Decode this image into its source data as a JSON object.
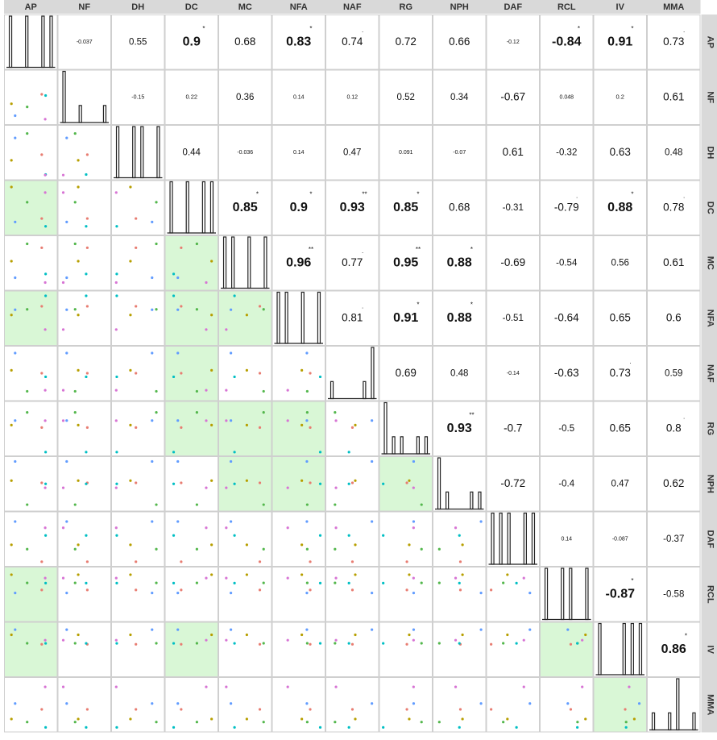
{
  "chart_data": {
    "type": "correlation-matrix",
    "variables": [
      "AP",
      "NF",
      "DH",
      "DC",
      "MC",
      "NFA",
      "NAF",
      "RG",
      "NPH",
      "DAF",
      "RCL",
      "IV",
      "MMA"
    ],
    "upper": [
      {
        "row": "AP",
        "col": "NF",
        "r": "-0.037",
        "sig": ""
      },
      {
        "row": "AP",
        "col": "DH",
        "r": "0.55",
        "sig": ""
      },
      {
        "row": "AP",
        "col": "DC",
        "r": "0.9",
        "sig": "*"
      },
      {
        "row": "AP",
        "col": "MC",
        "r": "0.68",
        "sig": ""
      },
      {
        "row": "AP",
        "col": "NFA",
        "r": "0.83",
        "sig": "*"
      },
      {
        "row": "AP",
        "col": "NAF",
        "r": "0.74",
        "sig": "."
      },
      {
        "row": "AP",
        "col": "RG",
        "r": "0.72",
        "sig": ""
      },
      {
        "row": "AP",
        "col": "NPH",
        "r": "0.66",
        "sig": ""
      },
      {
        "row": "AP",
        "col": "DAF",
        "r": "-0.12",
        "sig": ""
      },
      {
        "row": "AP",
        "col": "RCL",
        "r": "-0.84",
        "sig": "*"
      },
      {
        "row": "AP",
        "col": "IV",
        "r": "0.91",
        "sig": "*"
      },
      {
        "row": "AP",
        "col": "MMA",
        "r": "0.73",
        "sig": "."
      },
      {
        "row": "NF",
        "col": "DH",
        "r": "-0.15",
        "sig": ""
      },
      {
        "row": "NF",
        "col": "DC",
        "r": "0.22",
        "sig": ""
      },
      {
        "row": "NF",
        "col": "MC",
        "r": "0.36",
        "sig": ""
      },
      {
        "row": "NF",
        "col": "NFA",
        "r": "0.14",
        "sig": ""
      },
      {
        "row": "NF",
        "col": "NAF",
        "r": "0.12",
        "sig": ""
      },
      {
        "row": "NF",
        "col": "RG",
        "r": "0.52",
        "sig": ""
      },
      {
        "row": "NF",
        "col": "NPH",
        "r": "0.34",
        "sig": ""
      },
      {
        "row": "NF",
        "col": "DAF",
        "r": "-0.67",
        "sig": ""
      },
      {
        "row": "NF",
        "col": "RCL",
        "r": "0.048",
        "sig": ""
      },
      {
        "row": "NF",
        "col": "IV",
        "r": "0.2",
        "sig": ""
      },
      {
        "row": "NF",
        "col": "MMA",
        "r": "0.61",
        "sig": ""
      },
      {
        "row": "DH",
        "col": "DC",
        "r": "0.44",
        "sig": ""
      },
      {
        "row": "DH",
        "col": "MC",
        "r": "-0.036",
        "sig": ""
      },
      {
        "row": "DH",
        "col": "NFA",
        "r": "0.14",
        "sig": ""
      },
      {
        "row": "DH",
        "col": "NAF",
        "r": "0.47",
        "sig": ""
      },
      {
        "row": "DH",
        "col": "RG",
        "r": "0.091",
        "sig": ""
      },
      {
        "row": "DH",
        "col": "NPH",
        "r": "-0.07",
        "sig": ""
      },
      {
        "row": "DH",
        "col": "DAF",
        "r": "0.61",
        "sig": ""
      },
      {
        "row": "DH",
        "col": "RCL",
        "r": "-0.32",
        "sig": ""
      },
      {
        "row": "DH",
        "col": "IV",
        "r": "0.63",
        "sig": ""
      },
      {
        "row": "DH",
        "col": "MMA",
        "r": "0.48",
        "sig": ""
      },
      {
        "row": "DC",
        "col": "MC",
        "r": "0.85",
        "sig": "*"
      },
      {
        "row": "DC",
        "col": "NFA",
        "r": "0.9",
        "sig": "*"
      },
      {
        "row": "DC",
        "col": "NAF",
        "r": "0.93",
        "sig": "**"
      },
      {
        "row": "DC",
        "col": "RG",
        "r": "0.85",
        "sig": "*"
      },
      {
        "row": "DC",
        "col": "NPH",
        "r": "0.68",
        "sig": ""
      },
      {
        "row": "DC",
        "col": "DAF",
        "r": "-0.31",
        "sig": ""
      },
      {
        "row": "DC",
        "col": "RCL",
        "r": "-0.79",
        "sig": "."
      },
      {
        "row": "DC",
        "col": "IV",
        "r": "0.88",
        "sig": "*"
      },
      {
        "row": "DC",
        "col": "MMA",
        "r": "0.78",
        "sig": "."
      },
      {
        "row": "MC",
        "col": "NFA",
        "r": "0.96",
        "sig": "**"
      },
      {
        "row": "MC",
        "col": "NAF",
        "r": "0.77",
        "sig": "."
      },
      {
        "row": "MC",
        "col": "RG",
        "r": "0.95",
        "sig": "**"
      },
      {
        "row": "MC",
        "col": "NPH",
        "r": "0.88",
        "sig": "*"
      },
      {
        "row": "MC",
        "col": "DAF",
        "r": "-0.69",
        "sig": ""
      },
      {
        "row": "MC",
        "col": "RCL",
        "r": "-0.54",
        "sig": ""
      },
      {
        "row": "MC",
        "col": "IV",
        "r": "0.56",
        "sig": ""
      },
      {
        "row": "MC",
        "col": "MMA",
        "r": "0.61",
        "sig": ""
      },
      {
        "row": "NFA",
        "col": "NAF",
        "r": "0.81",
        "sig": "."
      },
      {
        "row": "NFA",
        "col": "RG",
        "r": "0.91",
        "sig": "*"
      },
      {
        "row": "NFA",
        "col": "NPH",
        "r": "0.88",
        "sig": "*"
      },
      {
        "row": "NFA",
        "col": "DAF",
        "r": "-0.51",
        "sig": ""
      },
      {
        "row": "NFA",
        "col": "RCL",
        "r": "-0.64",
        "sig": ""
      },
      {
        "row": "NFA",
        "col": "IV",
        "r": "0.65",
        "sig": ""
      },
      {
        "row": "NFA",
        "col": "MMA",
        "r": "0.6",
        "sig": ""
      },
      {
        "row": "NAF",
        "col": "RG",
        "r": "0.69",
        "sig": ""
      },
      {
        "row": "NAF",
        "col": "NPH",
        "r": "0.48",
        "sig": ""
      },
      {
        "row": "NAF",
        "col": "DAF",
        "r": "-0.14",
        "sig": ""
      },
      {
        "row": "NAF",
        "col": "RCL",
        "r": "-0.63",
        "sig": ""
      },
      {
        "row": "NAF",
        "col": "IV",
        "r": "0.73",
        "sig": "."
      },
      {
        "row": "NAF",
        "col": "MMA",
        "r": "0.59",
        "sig": ""
      },
      {
        "row": "RG",
        "col": "NPH",
        "r": "0.93",
        "sig": "**"
      },
      {
        "row": "RG",
        "col": "DAF",
        "r": "-0.7",
        "sig": ""
      },
      {
        "row": "RG",
        "col": "RCL",
        "r": "-0.5",
        "sig": ""
      },
      {
        "row": "RG",
        "col": "IV",
        "r": "0.65",
        "sig": ""
      },
      {
        "row": "RG",
        "col": "MMA",
        "r": "0.8",
        "sig": "."
      },
      {
        "row": "NPH",
        "col": "DAF",
        "r": "-0.72",
        "sig": ""
      },
      {
        "row": "NPH",
        "col": "RCL",
        "r": "-0.4",
        "sig": ""
      },
      {
        "row": "NPH",
        "col": "IV",
        "r": "0.47",
        "sig": ""
      },
      {
        "row": "NPH",
        "col": "MMA",
        "r": "0.62",
        "sig": ""
      },
      {
        "row": "DAF",
        "col": "RCL",
        "r": "0.14",
        "sig": ""
      },
      {
        "row": "DAF",
        "col": "IV",
        "r": "-0.087",
        "sig": ""
      },
      {
        "row": "DAF",
        "col": "MMA",
        "r": "-0.37",
        "sig": ""
      },
      {
        "row": "RCL",
        "col": "IV",
        "r": "-0.87",
        "sig": "*"
      },
      {
        "row": "RCL",
        "col": "MMA",
        "r": "-0.58",
        "sig": ""
      },
      {
        "row": "IV",
        "col": "MMA",
        "r": "0.86",
        "sig": "*"
      }
    ],
    "highlighted_lower": [
      [
        "DC",
        "AP"
      ],
      [
        "NFA",
        "AP"
      ],
      [
        "RCL",
        "AP"
      ],
      [
        "IV",
        "AP"
      ],
      [
        "MC",
        "DC"
      ],
      [
        "NFA",
        "DC"
      ],
      [
        "NAF",
        "DC"
      ],
      [
        "RG",
        "DC"
      ],
      [
        "IV",
        "DC"
      ],
      [
        "NFA",
        "MC"
      ],
      [
        "RG",
        "MC"
      ],
      [
        "NPH",
        "MC"
      ],
      [
        "RG",
        "NFA"
      ],
      [
        "NPH",
        "NFA"
      ],
      [
        "NPH",
        "RG"
      ],
      [
        "IV",
        "RCL"
      ],
      [
        "MMA",
        "IV"
      ]
    ],
    "histograms": {
      "AP": [
        1,
        0,
        1,
        0,
        1,
        1
      ],
      "NF": [
        3,
        0,
        1,
        0,
        0,
        1
      ],
      "DH": [
        1,
        0,
        1,
        1,
        0,
        1
      ],
      "DC": [
        1,
        0,
        1,
        0,
        1,
        1
      ],
      "MC": [
        1,
        1,
        0,
        1,
        0,
        1
      ],
      "NFA": [
        1,
        1,
        0,
        1,
        0,
        1
      ],
      "NAF": [
        1,
        0,
        0,
        0,
        1,
        3
      ],
      "RG": [
        3,
        1,
        1,
        0,
        1,
        1
      ],
      "NPH": [
        3,
        1,
        0,
        0,
        1,
        1
      ],
      "DAF": [
        1,
        1,
        1,
        0,
        1,
        1
      ],
      "RCL": [
        1,
        0,
        1,
        1,
        0,
        1
      ],
      "IV": [
        1,
        0,
        0,
        1,
        1,
        1
      ],
      "MMA": [
        1,
        0,
        1,
        3,
        0,
        1
      ]
    },
    "point_colors": [
      "#E87D72",
      "#B79F00",
      "#53B74C",
      "#00BFC4",
      "#619CFF",
      "#D774D4"
    ],
    "highlight_color": "#D9F7D6",
    "header_color": "#D9D9D9",
    "grid": true,
    "legend": "none"
  }
}
